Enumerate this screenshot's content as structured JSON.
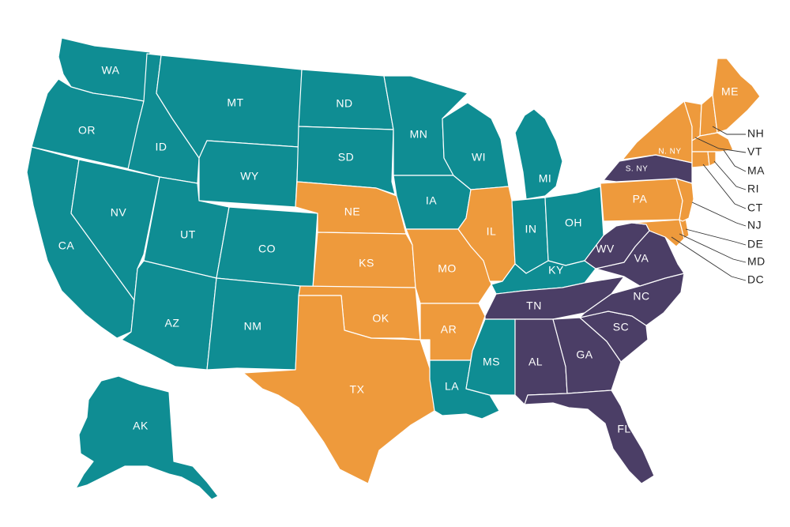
{
  "colors": {
    "teal": "#0f8d93",
    "orange": "#ee9a3c",
    "purple": "#4b3e66",
    "border": "#ffffff",
    "callout_text": "#222222"
  },
  "states": {
    "WA": {
      "label": "WA",
      "group": "teal"
    },
    "OR": {
      "label": "OR",
      "group": "teal"
    },
    "CA": {
      "label": "CA",
      "group": "teal"
    },
    "ID": {
      "label": "ID",
      "group": "teal"
    },
    "NV": {
      "label": "NV",
      "group": "teal"
    },
    "MT": {
      "label": "MT",
      "group": "teal"
    },
    "WY": {
      "label": "WY",
      "group": "teal"
    },
    "UT": {
      "label": "UT",
      "group": "teal"
    },
    "CO": {
      "label": "CO",
      "group": "teal"
    },
    "AZ": {
      "label": "AZ",
      "group": "teal"
    },
    "NM": {
      "label": "NM",
      "group": "teal"
    },
    "ND": {
      "label": "ND",
      "group": "teal"
    },
    "SD": {
      "label": "SD",
      "group": "teal"
    },
    "NE": {
      "label": "NE",
      "group": "orange"
    },
    "KS": {
      "label": "KS",
      "group": "orange"
    },
    "OK": {
      "label": "OK",
      "group": "orange"
    },
    "TX": {
      "label": "TX",
      "group": "orange"
    },
    "MN": {
      "label": "MN",
      "group": "teal"
    },
    "IA": {
      "label": "IA",
      "group": "teal"
    },
    "MO": {
      "label": "MO",
      "group": "orange"
    },
    "AR": {
      "label": "AR",
      "group": "orange"
    },
    "LA": {
      "label": "LA",
      "group": "teal"
    },
    "WI": {
      "label": "WI",
      "group": "teal"
    },
    "IL": {
      "label": "IL",
      "group": "orange"
    },
    "MI": {
      "label": "MI",
      "group": "teal"
    },
    "IN": {
      "label": "IN",
      "group": "teal"
    },
    "OH": {
      "label": "OH",
      "group": "teal"
    },
    "KY": {
      "label": "KY",
      "group": "teal"
    },
    "TN": {
      "label": "TN",
      "group": "purple"
    },
    "MS": {
      "label": "MS",
      "group": "teal"
    },
    "AL": {
      "label": "AL",
      "group": "purple"
    },
    "GA": {
      "label": "GA",
      "group": "purple"
    },
    "FL": {
      "label": "FL",
      "group": "purple"
    },
    "SC": {
      "label": "SC",
      "group": "purple"
    },
    "NC": {
      "label": "NC",
      "group": "purple"
    },
    "VA": {
      "label": "VA",
      "group": "purple"
    },
    "WV": {
      "label": "WV",
      "group": "purple"
    },
    "PA": {
      "label": "PA",
      "group": "orange"
    },
    "N_NY": {
      "label": "N. NY",
      "group": "orange"
    },
    "S_NY": {
      "label": "S. NY",
      "group": "purple"
    },
    "ME": {
      "label": "ME",
      "group": "orange"
    },
    "NH": {
      "label": "",
      "group": "orange"
    },
    "VT": {
      "label": "",
      "group": "orange"
    },
    "MA": {
      "label": "",
      "group": "orange"
    },
    "RI": {
      "label": "",
      "group": "orange"
    },
    "CT": {
      "label": "",
      "group": "orange"
    },
    "NJ": {
      "label": "",
      "group": "orange"
    },
    "DE": {
      "label": "",
      "group": "orange"
    },
    "MD": {
      "label": "",
      "group": "orange"
    },
    "AK": {
      "label": "AK",
      "group": "teal"
    }
  },
  "callouts": {
    "NH": "NH",
    "VT": "VT",
    "MA": "MA",
    "RI": "RI",
    "CT": "CT",
    "NJ": "NJ",
    "DE": "DE",
    "MD": "MD",
    "DC": "DC"
  }
}
